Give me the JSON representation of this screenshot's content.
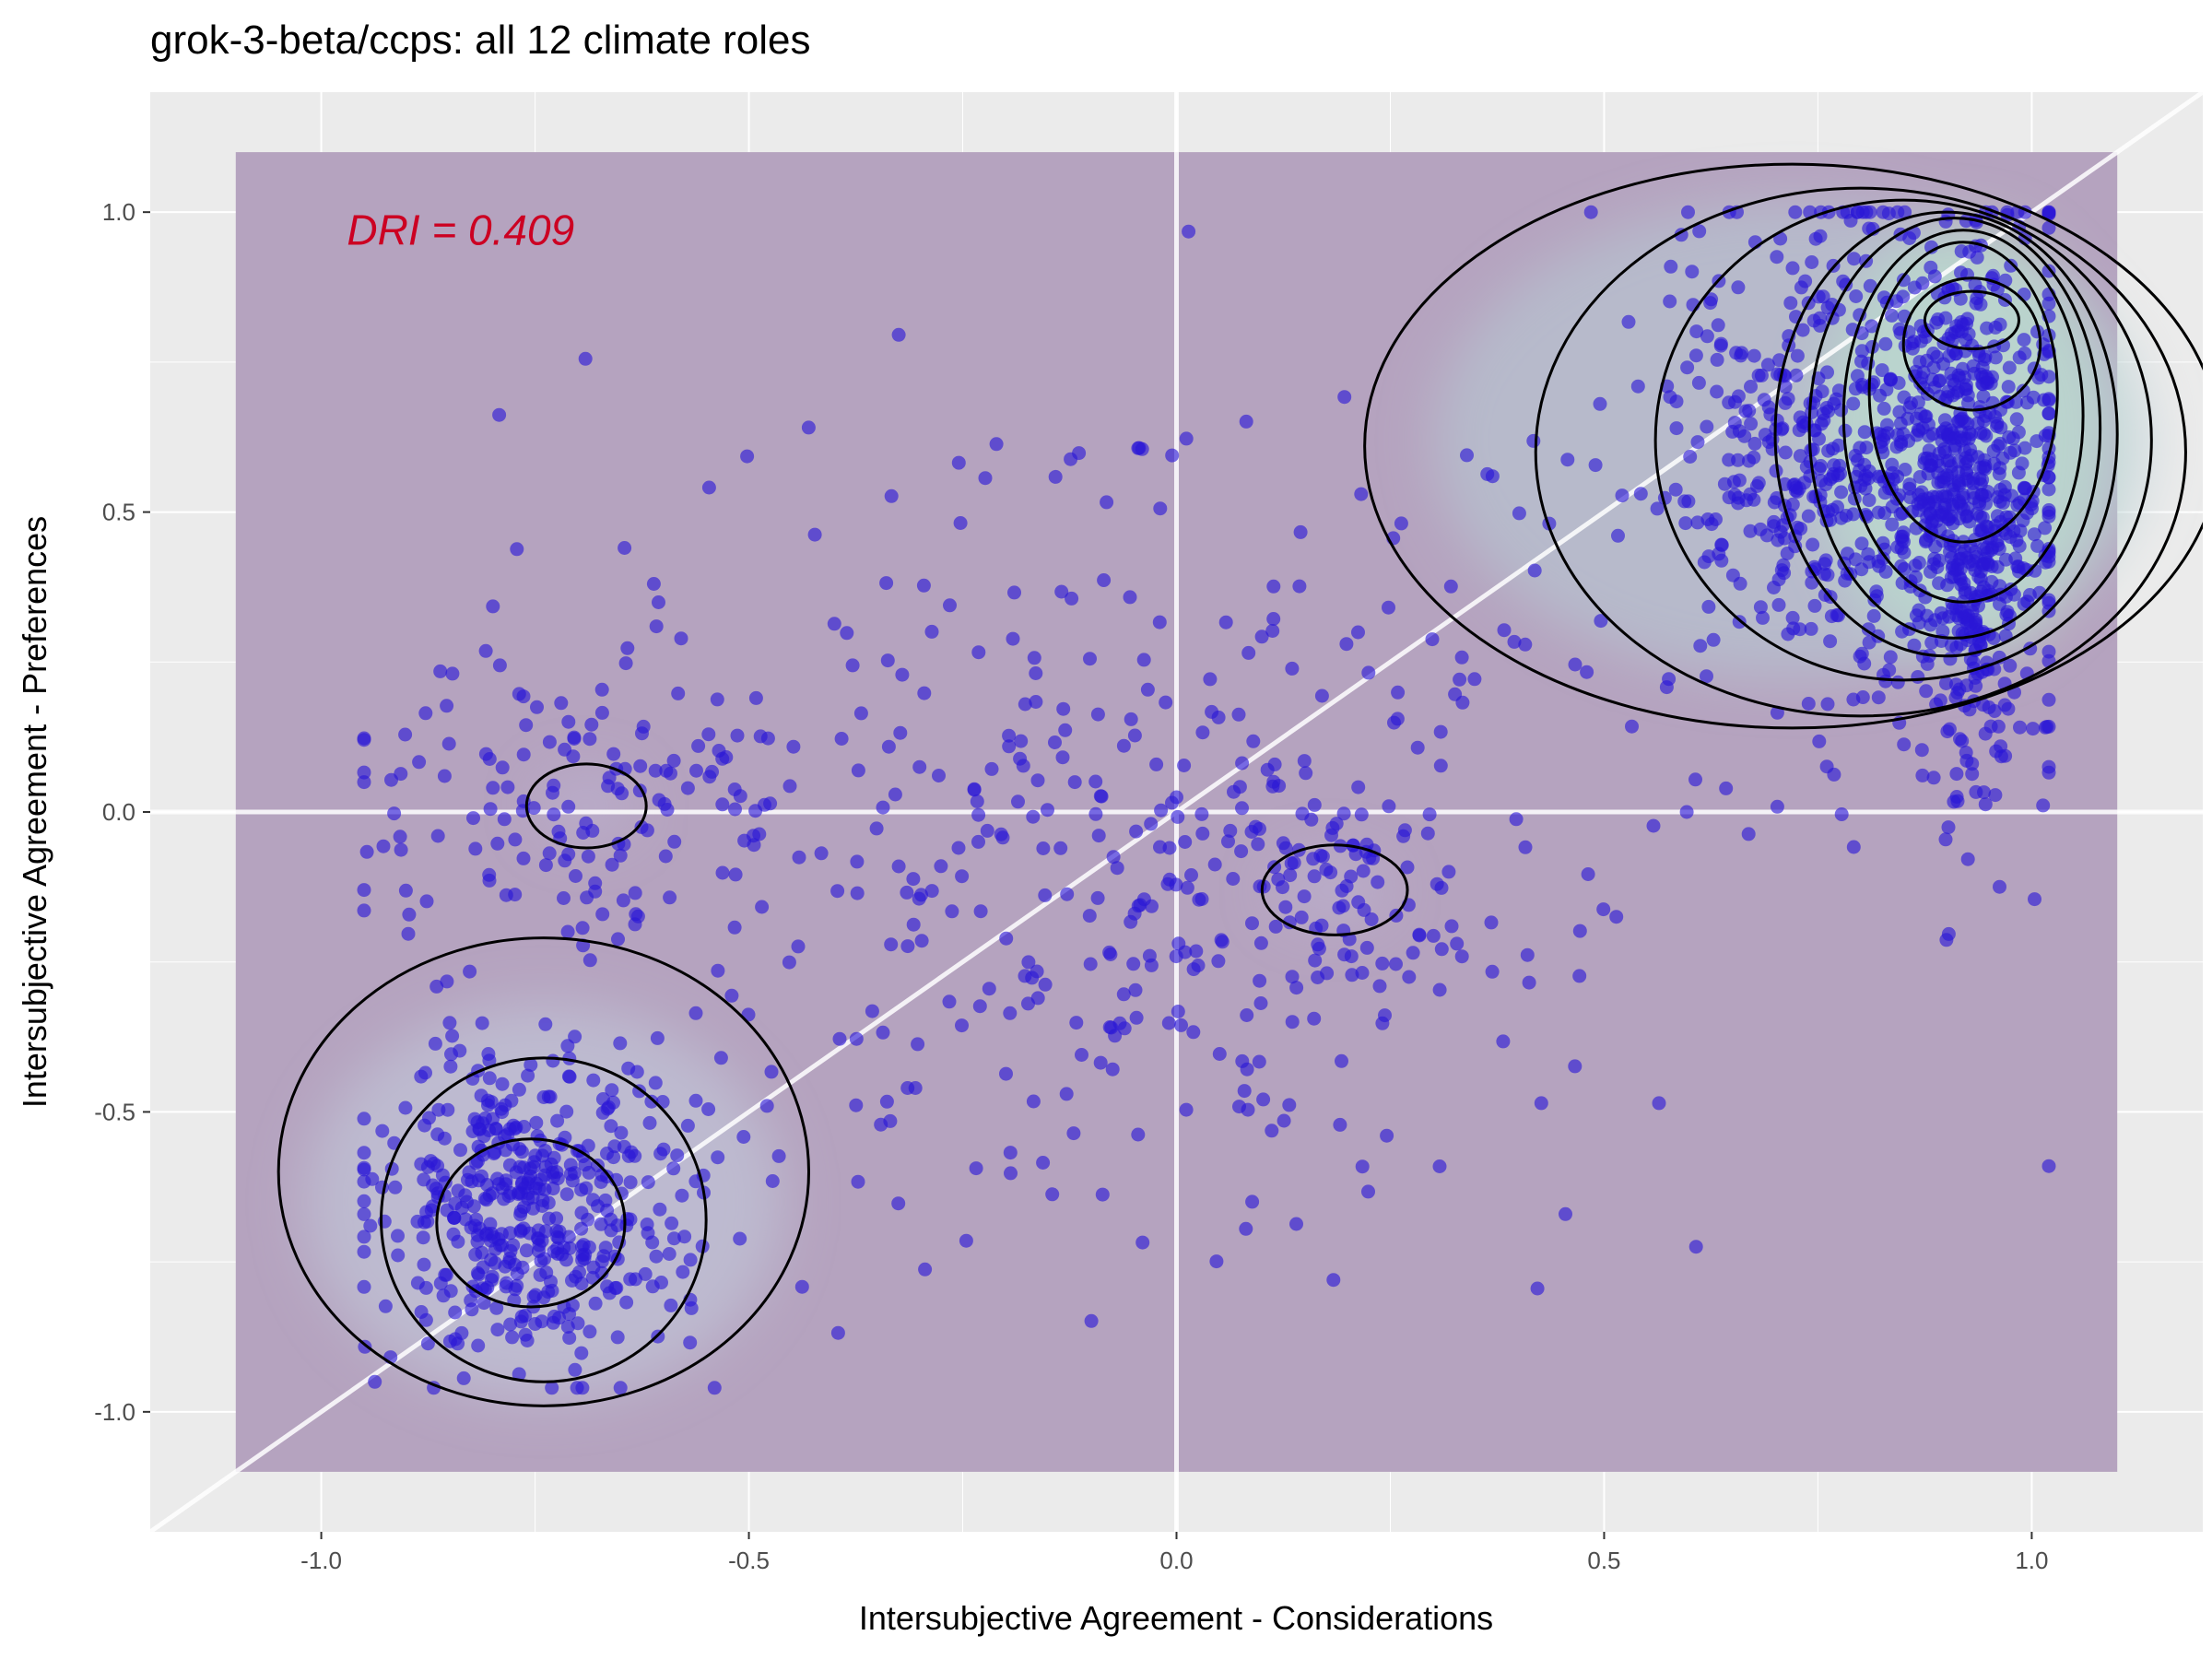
{
  "chart_data": {
    "type": "scatter",
    "title": "grok-3-beta/ccps: all 12 climate roles",
    "xlabel": "Intersubjective Agreement - Considerations",
    "ylabel": "Intersubjective Agreement - Preferences",
    "xlim": [
      -1.2,
      1.2
    ],
    "ylim": [
      -1.2,
      1.2
    ],
    "x_ticks": [
      -1.0,
      -0.5,
      0.0,
      0.5,
      1.0
    ],
    "x_tick_labels": [
      "-1.0",
      "-0.5",
      "0.0",
      "0.5",
      "1.0"
    ],
    "y_ticks": [
      -1.0,
      -0.5,
      0.0,
      0.5,
      1.0
    ],
    "y_tick_labels": [
      "-1.0",
      "-0.5",
      "0.0",
      "0.5",
      "1.0"
    ],
    "grid": true,
    "reference_lines": {
      "diagonal": "y = x",
      "vertical": 0.0,
      "horizontal": 0.0
    },
    "density_region": {
      "x": [
        -1.1,
        1.1
      ],
      "y": [
        -1.1,
        1.1
      ]
    },
    "annotation": {
      "text": "DRI = 0.409",
      "color": "#cc0022",
      "x": -0.97,
      "y": 0.97
    },
    "colors": {
      "panel": "#ebebeb",
      "density_base": "#b5a3bf",
      "points": "#2a16d6",
      "contours": "#000000",
      "gridlines": "#ffffff"
    },
    "clusters": [
      {
        "name": "",
        "center": [
          0.82,
          0.58
        ],
        "spread": [
          0.13,
          0.22
        ],
        "count": 700
      },
      {
        "name": "",
        "center": [
          0.93,
          0.5
        ],
        "spread": [
          0.04,
          0.2
        ],
        "count": 420
      },
      {
        "name": "",
        "center": [
          -0.75,
          -0.66
        ],
        "spread": [
          0.09,
          0.13
        ],
        "count": 450
      },
      {
        "name": "",
        "center": [
          0.17,
          -0.14
        ],
        "spread": [
          0.08,
          0.08
        ],
        "count": 70
      },
      {
        "name": "",
        "center": [
          -0.7,
          0.02
        ],
        "spread": [
          0.13,
          0.15
        ],
        "count": 130
      },
      {
        "name": "",
        "center": [
          -0.05,
          -0.05
        ],
        "spread": [
          0.33,
          0.35
        ],
        "count": 420
      }
    ],
    "contours": [
      {
        "center": [
          0.93,
          0.82
        ],
        "rx": 0.055,
        "ry": 0.048
      },
      {
        "center": [
          0.93,
          0.78
        ],
        "rx": 0.08,
        "ry": 0.11
      },
      {
        "center": [
          0.92,
          0.7
        ],
        "rx": 0.11,
        "ry": 0.25
      },
      {
        "center": [
          0.92,
          0.66
        ],
        "rx": 0.14,
        "ry": 0.31
      },
      {
        "center": [
          0.91,
          0.64
        ],
        "rx": 0.17,
        "ry": 0.35
      },
      {
        "center": [
          0.9,
          0.63
        ],
        "rx": 0.2,
        "ry": 0.37
      },
      {
        "center": [
          0.85,
          0.62
        ],
        "rx": 0.29,
        "ry": 0.4
      },
      {
        "center": [
          0.8,
          0.6
        ],
        "rx": 0.38,
        "ry": 0.44
      },
      {
        "center": [
          0.72,
          0.61
        ],
        "rx": 0.5,
        "ry": 0.47
      },
      {
        "center": [
          -0.755,
          -0.685
        ],
        "rx": 0.11,
        "ry": 0.14
      },
      {
        "center": [
          -0.74,
          -0.68
        ],
        "rx": 0.19,
        "ry": 0.27
      },
      {
        "center": [
          -0.74,
          -0.6
        ],
        "rx": 0.31,
        "ry": 0.39
      },
      {
        "center": [
          -0.69,
          0.01
        ],
        "rx": 0.07,
        "ry": 0.07
      },
      {
        "center": [
          0.185,
          -0.13
        ],
        "rx": 0.085,
        "ry": 0.075
      }
    ]
  }
}
